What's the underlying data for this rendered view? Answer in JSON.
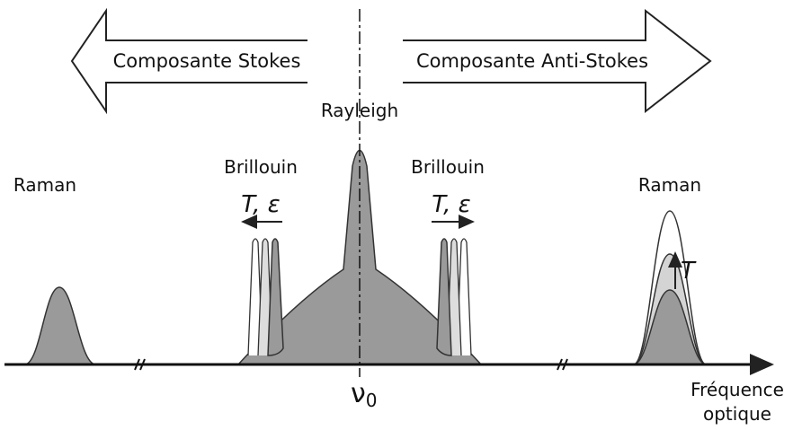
{
  "arrows": {
    "left": "Composante Stokes",
    "right": "Composante Anti-Stokes"
  },
  "peaks": {
    "rayleigh": "Rayleigh",
    "brillouin_left": "Brillouin",
    "brillouin_right": "Brillouin",
    "raman_left": "Raman",
    "raman_right": "Raman"
  },
  "shift_labels": {
    "brillouin_left": "T, ε",
    "brillouin_right": "T, ε",
    "raman": "T"
  },
  "center": {
    "symbol": "ν",
    "subscript": "0"
  },
  "axis_label": [
    "Fréquence",
    "optique"
  ]
}
